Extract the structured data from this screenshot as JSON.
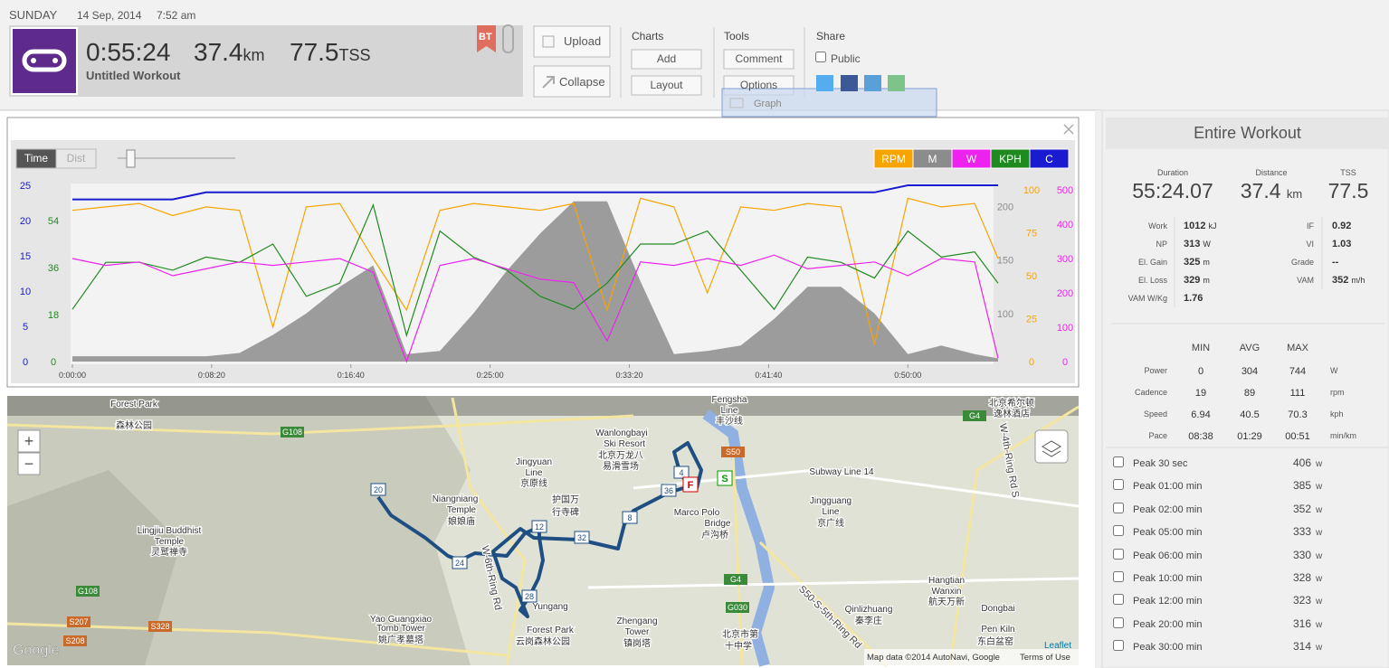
{
  "header": {
    "day": "SUNDAY",
    "date": "14 Sep, 2014",
    "time": "7:52 am"
  },
  "summary": {
    "duration": "0:55:24",
    "distance": 37.4,
    "distance_unit": "km",
    "tss": 77.5,
    "tss_unit": "TSS",
    "name": "Untitled Workout",
    "badge": "BT"
  },
  "actions": {
    "upload": "Upload",
    "collapse": "Collapse"
  },
  "charts": {
    "label": "Charts",
    "buttons": [
      "Add",
      "Layout"
    ]
  },
  "tools": {
    "label": "Tools",
    "buttons": [
      "Comment",
      "Options"
    ],
    "menu_item": "Graph"
  },
  "share": {
    "label": "Share",
    "public": "Public"
  },
  "graph": {
    "toggles": [
      "Time",
      "Dist"
    ],
    "xlim": [
      0,
      3324
    ],
    "xticks": [
      {
        "value": 0,
        "label": "0:00:00"
      },
      {
        "value": 500,
        "label": "0:08:20"
      },
      {
        "value": 1000,
        "label": "0:16:40"
      },
      {
        "value": 1500,
        "label": "0:25:00"
      },
      {
        "value": 2000,
        "label": "0:33:20"
      },
      {
        "value": 2500,
        "label": "0:41:40"
      },
      {
        "value": 3000,
        "label": "0:50:00"
      }
    ],
    "x": [
      0,
      120,
      240,
      360,
      480,
      600,
      720,
      840,
      960,
      1080,
      1200,
      1320,
      1440,
      1560,
      1680,
      1800,
      1920,
      2040,
      2160,
      2280,
      2400,
      2520,
      2640,
      2760,
      2880,
      3000,
      3120,
      3240,
      3324
    ],
    "series": [
      {
        "name": "RPM",
        "color": "#f7a400",
        "ylim": [
          0,
          102.6
        ],
        "yticks": [
          0,
          25,
          50,
          75,
          100
        ],
        "values": [
          88,
          90,
          92,
          85,
          90,
          88,
          20,
          90,
          92,
          60,
          30,
          88,
          92,
          90,
          88,
          92,
          30,
          95,
          90,
          40,
          90,
          88,
          92,
          90,
          10,
          95,
          90,
          92,
          60
        ]
      },
      {
        "name": "M",
        "color": "#8c8c8c",
        "ylim": [
          55,
          220
        ],
        "yticks": [
          100,
          150,
          200
        ],
        "values": [
          60,
          60,
          60,
          60,
          60,
          63,
          80,
          100,
          125,
          145,
          62,
          65,
          100,
          140,
          175,
          205,
          205,
          130,
          62,
          65,
          70,
          95,
          125,
          125,
          100,
          62,
          70,
          62,
          58
        ]
      },
      {
        "name": "W",
        "color": "#ee22ee",
        "ylim": [
          0,
          513
        ],
        "yticks": [
          0,
          100,
          200,
          300,
          400,
          500
        ],
        "values": [
          300,
          280,
          290,
          250,
          270,
          290,
          280,
          290,
          300,
          260,
          0,
          280,
          300,
          270,
          240,
          230,
          60,
          290,
          280,
          300,
          280,
          310,
          270,
          280,
          290,
          250,
          300,
          290,
          10
        ]
      },
      {
        "name": "KPH",
        "color": "#1f8a1f",
        "ylim": [
          0,
          67.5
        ],
        "yticks": [
          0,
          18,
          36,
          54
        ],
        "values": [
          20,
          38,
          38,
          35,
          40,
          38,
          45,
          25,
          30,
          60,
          10,
          50,
          40,
          35,
          25,
          20,
          30,
          45,
          45,
          50,
          35,
          20,
          40,
          38,
          32,
          50,
          40,
          42,
          30
        ]
      },
      {
        "name": "C",
        "color": "#1a1ad0",
        "ylim": [
          0,
          25
        ],
        "yticks": [
          0,
          5,
          10,
          15,
          20,
          25
        ],
        "values": [
          23,
          23,
          23,
          23,
          24,
          24,
          24,
          24,
          24,
          24,
          24,
          24,
          24,
          24,
          24,
          24,
          24,
          24,
          24,
          24,
          24,
          24,
          24,
          24,
          24,
          25,
          25,
          25,
          25
        ]
      }
    ]
  },
  "map": {
    "zoom_in": "+",
    "zoom_out": "−",
    "markers": [
      "20",
      "24",
      "12",
      "32",
      "8",
      "36",
      "4",
      "28"
    ],
    "finish": "F",
    "start": "S",
    "labels": [
      "Forest Park",
      "森林公园",
      "Jingyuan",
      "Line",
      "京原线",
      "Wanlongbayi",
      "Ski Resort",
      "北京万龙八",
      "易滑雪场",
      "护国万",
      "行寺碑",
      "Niangniang",
      "Temple",
      "娘娘庙",
      "Lingjiu Buddhist",
      "Temple",
      "灵鹫禅寺",
      "Yao Guangxiao",
      "Tomb Tower",
      "姚广孝墓塔",
      "Yungang",
      "Forest Park",
      "云岗森林公园",
      "Zhengang",
      "Tower",
      "镇岗塔",
      "Marco Polo",
      "Bridge",
      "卢沟桥",
      "Fengsha",
      "Line",
      "丰沙线",
      "Subway Line 14",
      "Jingguang",
      "Line",
      "京广线",
      "Hangtian",
      "Wanxin",
      "航天万新",
      "Qinlizhuang",
      "秦李庄",
      "Dongbai",
      "Pen Kiln",
      "东白盆窑",
      "北京希尔顿",
      "逸林酒店",
      "北京市第",
      "十中学"
    ],
    "shields": [
      "G108",
      "G108",
      "S50",
      "G4",
      "G4",
      "G030",
      "S207",
      "S208",
      "S328"
    ],
    "roads": [
      "W-6th-Ring Rd",
      "S50-S-5th-Ring Rd",
      "W-4th-Ring Rd S"
    ],
    "logo": "Google",
    "leaflet": "Leaflet",
    "attribution": "Map data ©2014 AutoNavi, Google",
    "terms": "Terms of Use"
  },
  "panel": {
    "title": "Entire Workout",
    "headline": [
      {
        "label": "Duration",
        "value": "55:24.07"
      },
      {
        "label": "Distance",
        "value": 37.4,
        "unit": "km"
      },
      {
        "label": "TSS",
        "value": 77.5
      }
    ],
    "stats_left": [
      {
        "label": "Work",
        "value": 1012,
        "unit": "kJ"
      },
      {
        "label": "NP",
        "value": 313,
        "unit": "W"
      },
      {
        "label": "El. Gain",
        "value": 325,
        "unit": "m"
      },
      {
        "label": "El. Loss",
        "value": 329,
        "unit": "m"
      },
      {
        "label": "VAM W/Kg",
        "value": 1.76
      }
    ],
    "stats_right": [
      {
        "label": "IF",
        "value": 0.92
      },
      {
        "label": "VI",
        "value": 1.03
      },
      {
        "label": "Grade",
        "value": "--"
      },
      {
        "label": "VAM",
        "value": 352,
        "unit": "m/h"
      }
    ],
    "table": {
      "columns": [
        "MIN",
        "AVG",
        "MAX"
      ],
      "rows": [
        {
          "label": "Power",
          "values": [
            0,
            304,
            744
          ],
          "unit": "W"
        },
        {
          "label": "Cadence",
          "values": [
            19,
            89,
            111
          ],
          "unit": "rpm"
        },
        {
          "label": "Speed",
          "values": [
            6.94,
            40.5,
            70.3
          ],
          "unit": "kph"
        },
        {
          "label": "Pace",
          "values": [
            "08:38",
            "01:29",
            "00:51"
          ],
          "unit": "min/km"
        }
      ]
    },
    "peaks": [
      {
        "label": "Peak 30 sec",
        "value": 406
      },
      {
        "label": "Peak 01:00 min",
        "value": 385
      },
      {
        "label": "Peak 02:00 min",
        "value": 352
      },
      {
        "label": "Peak 05:00 min",
        "value": 333
      },
      {
        "label": "Peak 06:00 min",
        "value": 330
      },
      {
        "label": "Peak 10:00 min",
        "value": 328
      },
      {
        "label": "Peak 12:00 min",
        "value": 323
      },
      {
        "label": "Peak 20:00 min",
        "value": 316
      },
      {
        "label": "Peak 30:00 min",
        "value": 314
      }
    ],
    "peak_unit": "w"
  }
}
